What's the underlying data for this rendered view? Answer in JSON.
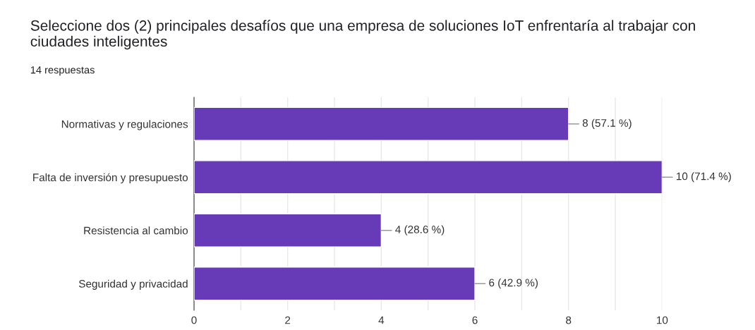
{
  "chart_data": {
    "type": "bar",
    "orientation": "horizontal",
    "title": "Seleccione dos (2) principales desafíos que una empresa de soluciones IoT enfrentaría al trabajar con ciudades inteligentes",
    "subtitle": "14 respuestas",
    "categories": [
      "Normativas y regulaciones",
      "Falta de inversión y presupuesto",
      "Resistencia al cambio",
      "Seguridad y privacidad"
    ],
    "values": [
      8,
      10,
      4,
      6
    ],
    "value_labels": [
      "8 (57.1 %)",
      "10 (71.4 %)",
      "4 (28.6 %)",
      "6 (42.9 %)"
    ],
    "color": "#673ab7",
    "xlim": [
      0,
      10
    ],
    "xticks": [
      0,
      {
        "value": 1,
        "label": null
      },
      2,
      {
        "value": 3,
        "label": null
      },
      4,
      {
        "value": 5,
        "label": null
      },
      6,
      {
        "value": 7,
        "label": null
      },
      8,
      {
        "value": 9,
        "label": null
      },
      10
    ],
    "grid": "x"
  }
}
